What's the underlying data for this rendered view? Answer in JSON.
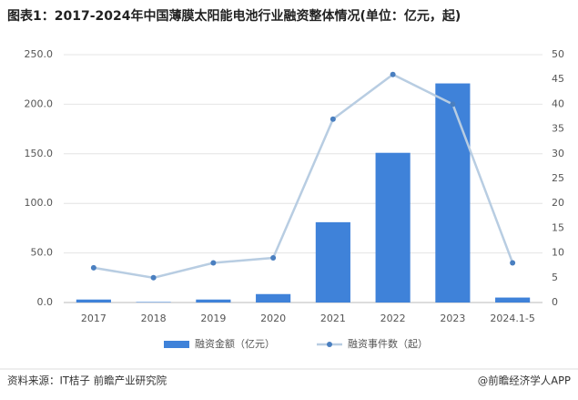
{
  "chart_data": {
    "type": "combo",
    "title": "图表1：2017-2024年中国薄膜太阳能电池行业融资整体情况(单位：亿元，起)",
    "categories": [
      "2017",
      "2018",
      "2019",
      "2020",
      "2021",
      "2022",
      "2023",
      "2024.1-5"
    ],
    "series": [
      {
        "name": "融资金额（亿元）",
        "type": "bar",
        "color": "#3f82d9",
        "values": [
          3,
          0.5,
          3,
          8.5,
          81,
          151,
          221,
          5
        ]
      },
      {
        "name": "融资事件数（起）",
        "type": "line",
        "axis": "y2",
        "color": "#b8cde2",
        "marker_color": "#4a7fc0",
        "values": [
          7,
          5,
          8,
          9,
          37,
          46,
          40,
          8
        ]
      }
    ],
    "ylim": [
      0,
      250
    ],
    "yticks": [
      {
        "value": 0,
        "label": "0.0"
      },
      {
        "value": 50,
        "label": "50.0"
      },
      {
        "value": 100,
        "label": "100.0"
      },
      {
        "value": 150,
        "label": "150.0"
      },
      {
        "value": 200,
        "label": "200.0"
      },
      {
        "value": 250,
        "label": "250.0"
      }
    ],
    "y2lim": [
      0,
      50
    ],
    "y2ticks": [
      0,
      5,
      10,
      15,
      20,
      25,
      30,
      35,
      40,
      45,
      50
    ],
    "grid": true
  },
  "footer": {
    "source": "资料来源：IT桔子 前瞻产业研究院",
    "credit": "@前瞻经济学人APP"
  }
}
